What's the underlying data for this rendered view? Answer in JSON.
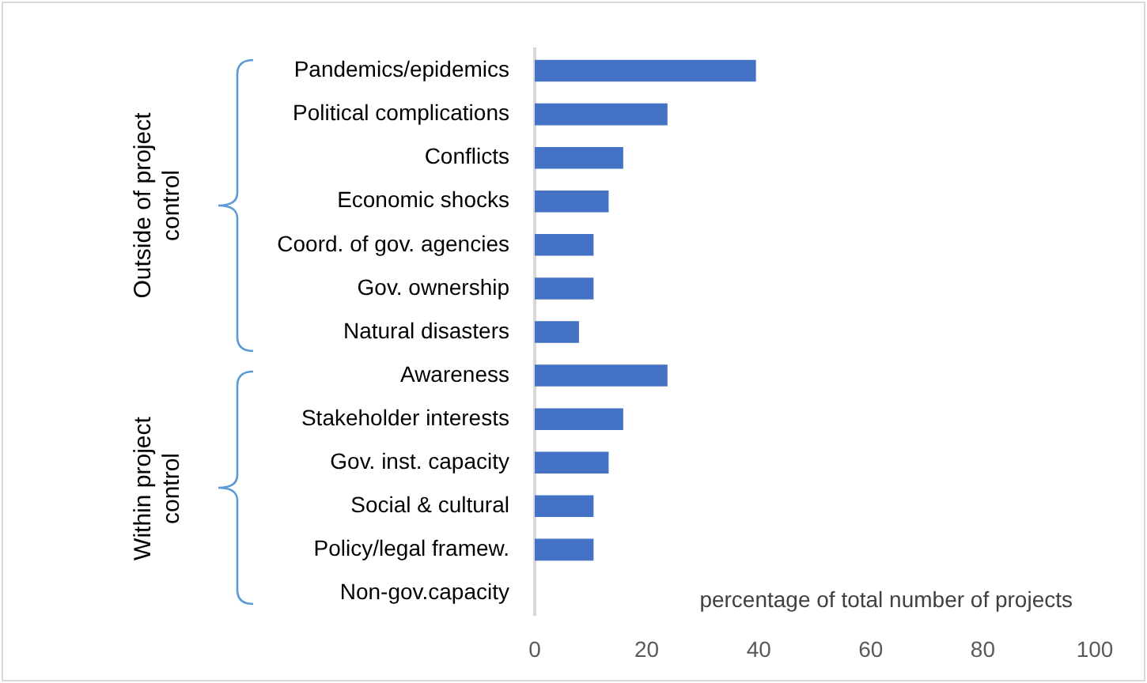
{
  "chart_data": {
    "type": "bar",
    "orientation": "horizontal",
    "xlabel": "percentage of total number of projects",
    "categories": [
      "Pandemics/epidemics",
      "Political complications",
      "Conflicts",
      "Economic shocks",
      "Coord. of gov. agencies",
      "Gov. ownership",
      "Natural disasters",
      "Awareness",
      "Stakeholder interests",
      "Gov. inst. capacity",
      "Social & cultural",
      "Policy/legal framew.",
      "Non-gov.capacity"
    ],
    "values": [
      39.5,
      23.7,
      15.8,
      13.2,
      10.5,
      10.5,
      7.9,
      23.7,
      15.8,
      13.2,
      10.5,
      10.5,
      0
    ],
    "color": "#4472c4",
    "xlim": [
      0,
      100
    ],
    "xticks": [
      0,
      20,
      40,
      60,
      80,
      100
    ],
    "grid": false,
    "legend": false,
    "annotations": [
      "Outside of project control",
      "Within project control"
    ]
  }
}
